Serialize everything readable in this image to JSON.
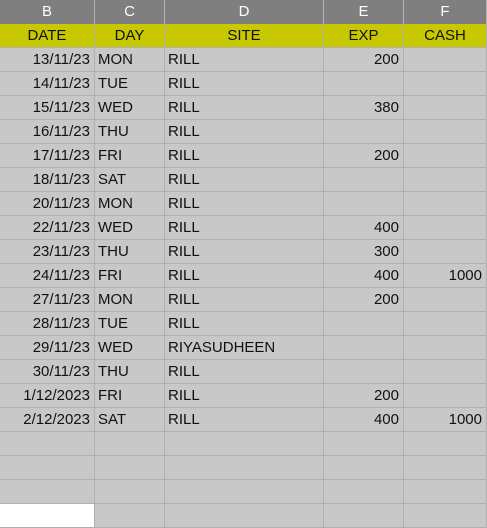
{
  "columns": [
    "B",
    "C",
    "D",
    "E",
    "F"
  ],
  "header": {
    "date": "DATE",
    "day": "DAY",
    "site": "SITE",
    "exp": "EXP",
    "cash": "CASH"
  },
  "rows": [
    {
      "date": "13/11/23",
      "day": "MON",
      "site": "RILL",
      "exp": "200",
      "cash": ""
    },
    {
      "date": "14/11/23",
      "day": "TUE",
      "site": "RILL",
      "exp": "",
      "cash": ""
    },
    {
      "date": "15/11/23",
      "day": "WED",
      "site": "RILL",
      "exp": "380",
      "cash": ""
    },
    {
      "date": "16/11/23",
      "day": "THU",
      "site": "RILL",
      "exp": "",
      "cash": ""
    },
    {
      "date": "17/11/23",
      "day": "FRI",
      "site": "RILL",
      "exp": "200",
      "cash": ""
    },
    {
      "date": "18/11/23",
      "day": "SAT",
      "site": "RILL",
      "exp": "",
      "cash": ""
    },
    {
      "date": "20/11/23",
      "day": "MON",
      "site": "RILL",
      "exp": "",
      "cash": ""
    },
    {
      "date": "22/11/23",
      "day": "WED",
      "site": "RILL",
      "exp": "400",
      "cash": ""
    },
    {
      "date": "23/11/23",
      "day": "THU",
      "site": "RILL",
      "exp": "300",
      "cash": ""
    },
    {
      "date": "24/11/23",
      "day": "FRI",
      "site": "RILL",
      "exp": "400",
      "cash": "1000"
    },
    {
      "date": "27/11/23",
      "day": "MON",
      "site": "RILL",
      "exp": "200",
      "cash": ""
    },
    {
      "date": "28/11/23",
      "day": "TUE",
      "site": "RILL",
      "exp": "",
      "cash": ""
    },
    {
      "date": "29/11/23",
      "day": "WED",
      "site": "RIYASUDHEEN",
      "exp": "",
      "cash": ""
    },
    {
      "date": "30/11/23",
      "day": "THU",
      "site": "RILL",
      "exp": "",
      "cash": ""
    },
    {
      "date": "1/12/2023",
      "day": "FRI",
      "site": "RILL",
      "exp": "200",
      "cash": ""
    },
    {
      "date": "2/12/2023",
      "day": "SAT",
      "site": "RILL",
      "exp": "400",
      "cash": "1000"
    }
  ],
  "colors": {
    "header_fill": "#c8c800",
    "cell_fill": "#c8c8c8",
    "column_header_fill": "#7f7f7f"
  }
}
